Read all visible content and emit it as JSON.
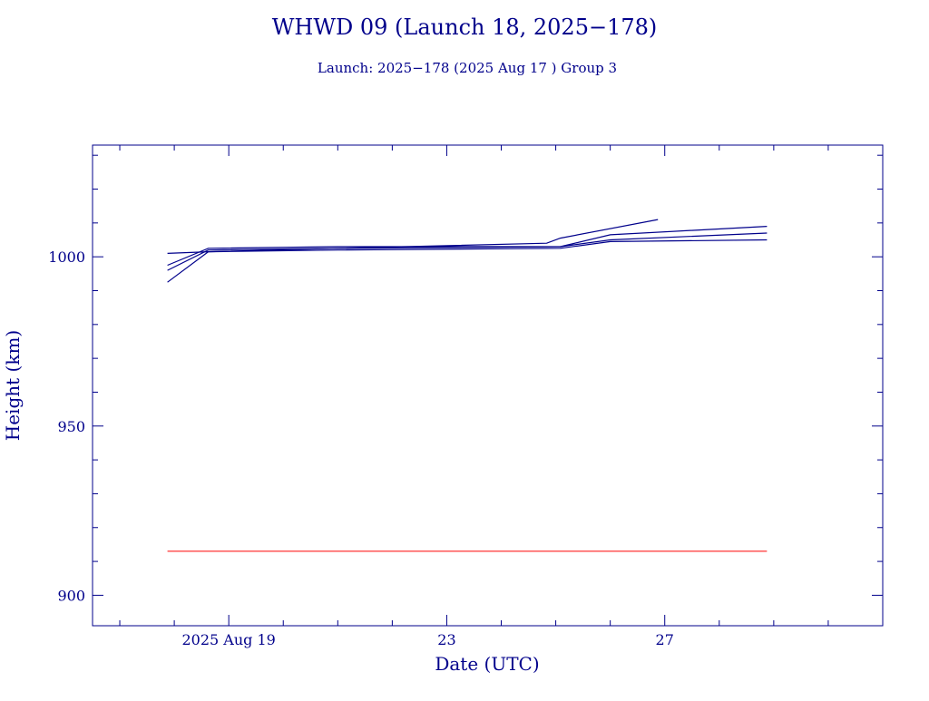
{
  "chart_data": {
    "type": "line",
    "title": "WHWD 09 (Launch 18, 2025−178)",
    "subtitle": "Launch: 2025−178  (2025 Aug 17 )  Group 3",
    "xlabel": "Date (UTC)",
    "ylabel": "Height (km)",
    "x_axis_type": "date",
    "xlim": [
      "2025-08-16T12:00",
      "2025-08-31T00:00"
    ],
    "ylim": [
      891,
      1033
    ],
    "x_ticks": [
      {
        "value": "2025-08-19",
        "label": "2025 Aug 19"
      },
      {
        "value": "2025-08-23",
        "label": "23"
      },
      {
        "value": "2025-08-27",
        "label": "27"
      }
    ],
    "y_ticks": [
      {
        "value": 900,
        "label": "900"
      },
      {
        "value": 950,
        "label": "950"
      },
      {
        "value": 1000,
        "label": "1000"
      }
    ],
    "line_color": "#00008b",
    "reference_color": "#ff0000",
    "axis_color": "#00008b",
    "series": [
      {
        "values": [
          {
            "x": "2025-08-17T21:00",
            "y": 992.5
          },
          {
            "x": "2025-08-18T15:00",
            "y": 1001.5
          },
          {
            "x": "2025-08-21T00:00",
            "y": 1002.0
          },
          {
            "x": "2025-08-25T02:00",
            "y": 1002.5
          },
          {
            "x": "2025-08-26T00:00",
            "y": 1004.5
          },
          {
            "x": "2025-08-28T21:00",
            "y": 1005.0
          }
        ]
      },
      {
        "values": [
          {
            "x": "2025-08-17T21:00",
            "y": 996.0
          },
          {
            "x": "2025-08-18T15:00",
            "y": 1002.0
          },
          {
            "x": "2025-08-21T00:00",
            "y": 1002.5
          },
          {
            "x": "2025-08-25T02:00",
            "y": 1003.0
          },
          {
            "x": "2025-08-26T00:00",
            "y": 1005.0
          },
          {
            "x": "2025-08-28T21:00",
            "y": 1007.0
          }
        ]
      },
      {
        "values": [
          {
            "x": "2025-08-17T21:00",
            "y": 997.5
          },
          {
            "x": "2025-08-18T15:00",
            "y": 1002.5
          },
          {
            "x": "2025-08-21T00:00",
            "y": 1003.0
          },
          {
            "x": "2025-08-25T02:00",
            "y": 1003.0
          },
          {
            "x": "2025-08-26T00:00",
            "y": 1006.5
          },
          {
            "x": "2025-08-28T21:00",
            "y": 1009.0
          }
        ]
      },
      {
        "values": [
          {
            "x": "2025-08-17T21:00",
            "y": 1001.0
          },
          {
            "x": "2025-08-18T15:00",
            "y": 1001.5
          },
          {
            "x": "2025-08-21T00:00",
            "y": 1002.5
          },
          {
            "x": "2025-08-24T20:00",
            "y": 1004.0
          },
          {
            "x": "2025-08-25T02:00",
            "y": 1005.5
          },
          {
            "x": "2025-08-26T21:00",
            "y": 1011.0
          }
        ]
      }
    ],
    "reference_lines": [
      {
        "y": 913,
        "x_start": "2025-08-17T21:00",
        "x_end": "2025-08-28T21:00"
      }
    ]
  }
}
